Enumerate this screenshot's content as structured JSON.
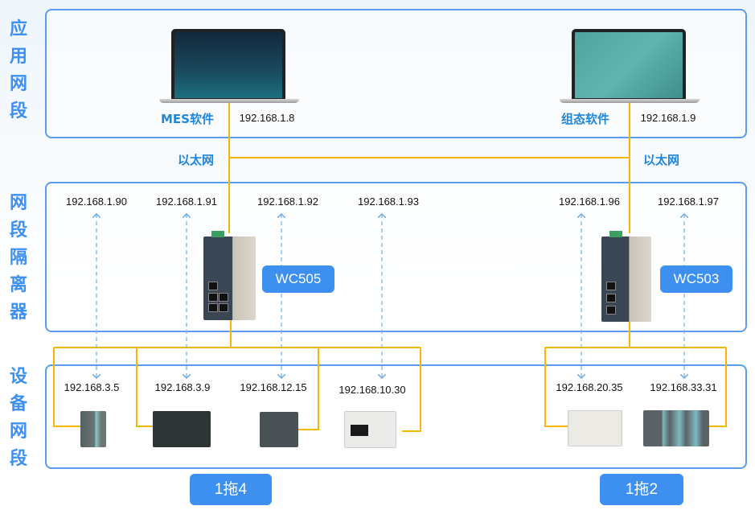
{
  "zones": {
    "application": {
      "label": [
        "应",
        "用",
        "网",
        "段"
      ]
    },
    "isolation": {
      "label": [
        "网",
        "段",
        "隔",
        "离",
        "器"
      ]
    },
    "device": {
      "label": [
        "设",
        "备",
        "网",
        "段"
      ]
    }
  },
  "apps": [
    {
      "name": "MES软件",
      "ip": "192.168.1.8"
    },
    {
      "name": "组态软件",
      "ip": "192.168.1.9"
    }
  ],
  "ethernet_label": "以太网",
  "gateways": [
    {
      "model": "WC505",
      "ips": [
        "192.168.1.90",
        "192.168.1.91",
        "192.168.1.92",
        "192.168.1.93"
      ],
      "devices": [
        "192.168.3.5",
        "192.168.3.9",
        "192.168.12.15",
        "192.168.10.30"
      ],
      "ratio": "1拖4"
    },
    {
      "model": "WC503",
      "ips": [
        "192.168.1.96",
        "192.168.1.97"
      ],
      "devices": [
        "192.168.20.35",
        "192.168.33.31"
      ],
      "ratio": "1拖2"
    }
  ],
  "colors": {
    "zone_border": "#5b9cf0",
    "ethernet_line": "#f5b800",
    "dashed_arrow": "#7fb3e0",
    "tag": "#3d8ff0",
    "label_blue": "#1f86d9"
  }
}
